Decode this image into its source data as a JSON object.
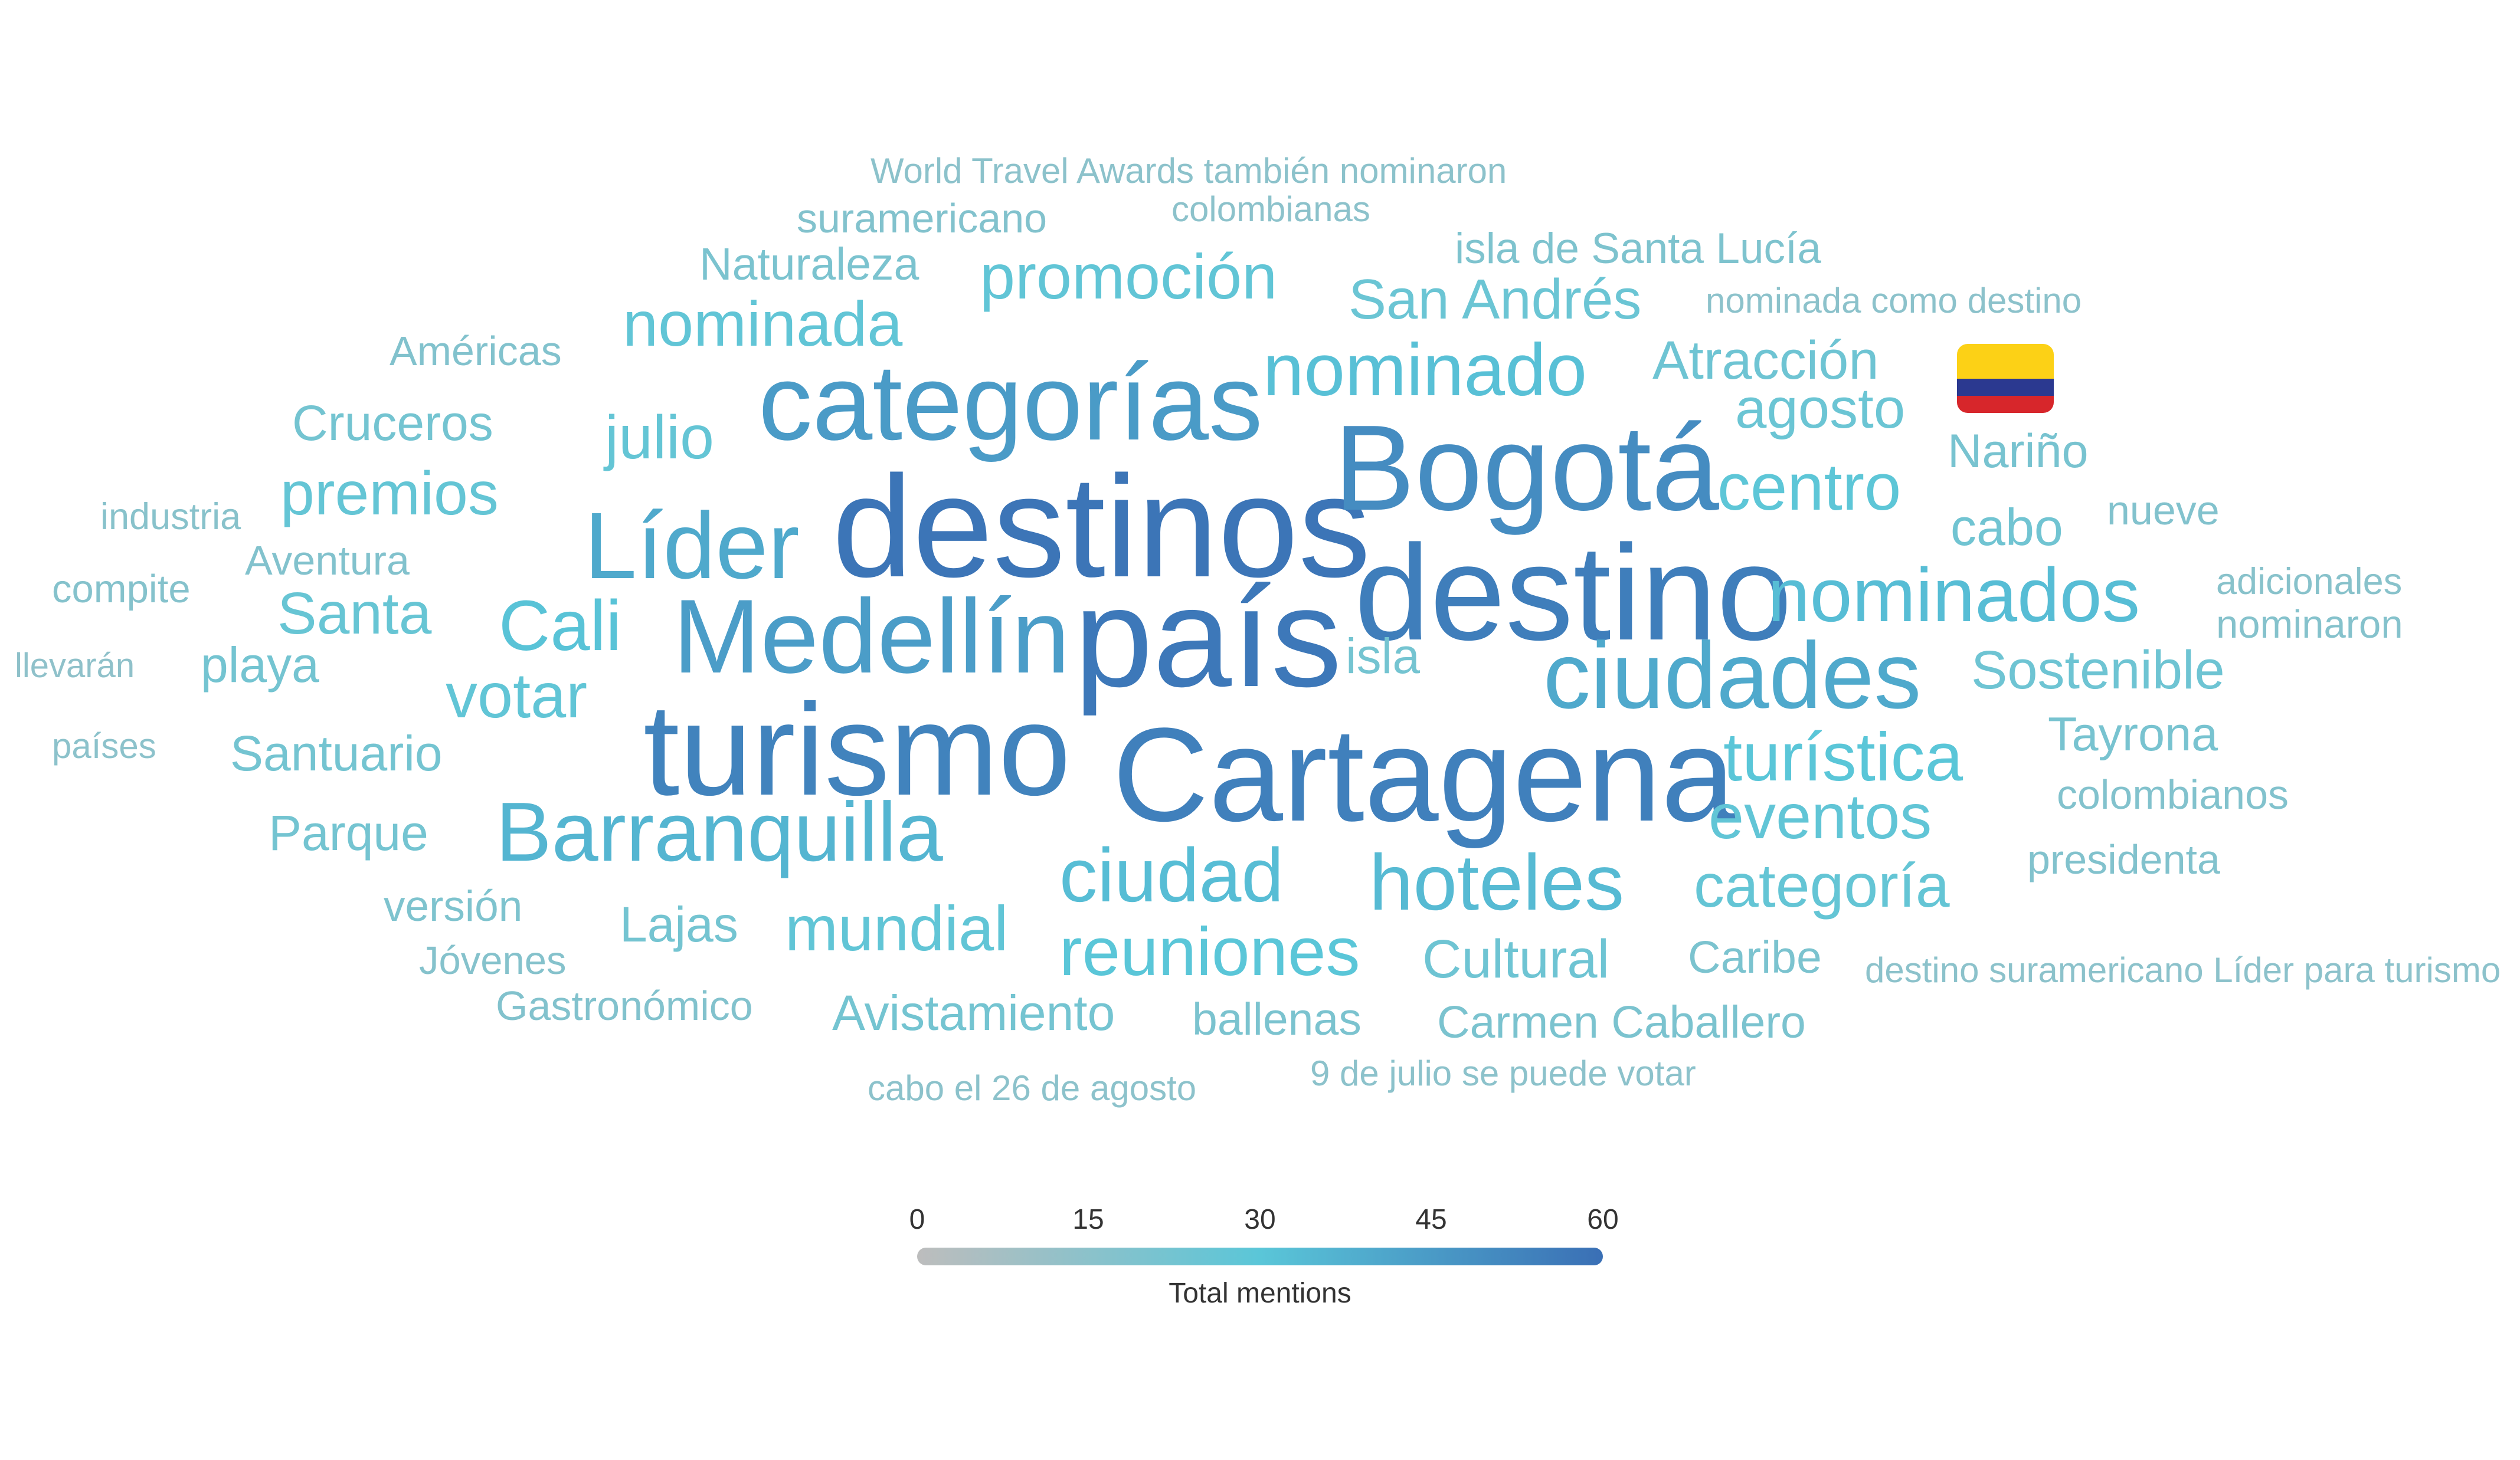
{
  "chart_data": {
    "type": "wordcloud",
    "metric": "Total mentions",
    "color_scale": {
      "min": 0,
      "max": 60,
      "ticks": [
        0,
        15,
        30,
        45,
        60
      ],
      "colors": [
        "#bdbdbd",
        "#5ac6d8",
        "#3a6fb5"
      ]
    },
    "words": [
      {
        "text": "destinos",
        "value": 58
      },
      {
        "text": "país",
        "value": 57
      },
      {
        "text": "destino",
        "value": 55
      },
      {
        "text": "Cartagena",
        "value": 54
      },
      {
        "text": "turismo",
        "value": 53
      },
      {
        "text": "Bogotá",
        "value": 50
      },
      {
        "text": "categorías",
        "value": 45
      },
      {
        "text": "Medellín",
        "value": 44
      },
      {
        "text": "Líder",
        "value": 40
      },
      {
        "text": "ciudades",
        "value": 40
      },
      {
        "text": "Barranquilla",
        "value": 36
      },
      {
        "text": "hoteles",
        "value": 34
      },
      {
        "text": "ciudad",
        "value": 33
      },
      {
        "text": "nominados",
        "value": 33
      },
      {
        "text": "nominado",
        "value": 32
      },
      {
        "text": "Cali",
        "value": 31
      },
      {
        "text": "reuniones",
        "value": 30
      },
      {
        "text": "turística",
        "value": 30
      },
      {
        "text": "centro",
        "value": 29
      },
      {
        "text": "mundial",
        "value": 28
      },
      {
        "text": "eventos",
        "value": 28
      },
      {
        "text": "votar",
        "value": 28
      },
      {
        "text": "nominada",
        "value": 28
      },
      {
        "text": "promoción",
        "value": 28
      },
      {
        "text": "premios",
        "value": 27
      },
      {
        "text": "categoría",
        "value": 27
      },
      {
        "text": "julio",
        "value": 27
      },
      {
        "text": "Santa",
        "value": 26
      },
      {
        "text": "San Andrés",
        "value": 25
      },
      {
        "text": "agosto",
        "value": 25
      },
      {
        "text": "Cultural",
        "value": 24
      },
      {
        "text": "Atracción",
        "value": 24
      },
      {
        "text": "Sostenible",
        "value": 24
      },
      {
        "text": "cabo",
        "value": 23
      },
      {
        "text": "Avistamiento",
        "value": 22
      },
      {
        "text": "Lajas",
        "value": 22
      },
      {
        "text": "Cruceros",
        "value": 22
      },
      {
        "text": "isla",
        "value": 22
      },
      {
        "text": "Santuario",
        "value": 22
      },
      {
        "text": "Parque",
        "value": 22
      },
      {
        "text": "playa",
        "value": 22
      },
      {
        "text": "Tayrona",
        "value": 21
      },
      {
        "text": "Nariño",
        "value": 21
      },
      {
        "text": "Naturaleza",
        "value": 20
      },
      {
        "text": "Caribe",
        "value": 20
      },
      {
        "text": "ballenas",
        "value": 20
      },
      {
        "text": "Carmen Caballero",
        "value": 20
      },
      {
        "text": "isla de Santa Lucía",
        "value": 19
      },
      {
        "text": "versión",
        "value": 19
      },
      {
        "text": "Américas",
        "value": 18
      },
      {
        "text": "Aventura",
        "value": 18
      },
      {
        "text": "nueve",
        "value": 18
      },
      {
        "text": "presidenta",
        "value": 18
      },
      {
        "text": "colombianos",
        "value": 18
      },
      {
        "text": "suramericano",
        "value": 18
      },
      {
        "text": "Gastronómico",
        "value": 18
      },
      {
        "text": "Jóvenes",
        "value": 17
      },
      {
        "text": "compite",
        "value": 17
      },
      {
        "text": "nominaron",
        "value": 17
      },
      {
        "text": "adicionales",
        "value": 16
      },
      {
        "text": "industria",
        "value": 16
      },
      {
        "text": "colombianas",
        "value": 15
      },
      {
        "text": "World Travel Awards también nominaron",
        "value": 15
      },
      {
        "text": "nominada como destino",
        "value": 15
      },
      {
        "text": "cabo el 26 de agosto",
        "value": 15
      },
      {
        "text": "9 de julio se puede votar",
        "value": 15
      },
      {
        "text": "destino suramericano Líder para turismo",
        "value": 15
      },
      {
        "text": "países",
        "value": 15
      },
      {
        "text": "llevarán",
        "value": 14
      }
    ]
  },
  "flag": {
    "icon": "colombia-flag-icon",
    "colors": [
      "#fcd116",
      "#2b3990",
      "#d7262b"
    ]
  },
  "legend": {
    "title": "Total mentions",
    "ticks": [
      "0",
      "15",
      "30",
      "45",
      "60"
    ]
  }
}
